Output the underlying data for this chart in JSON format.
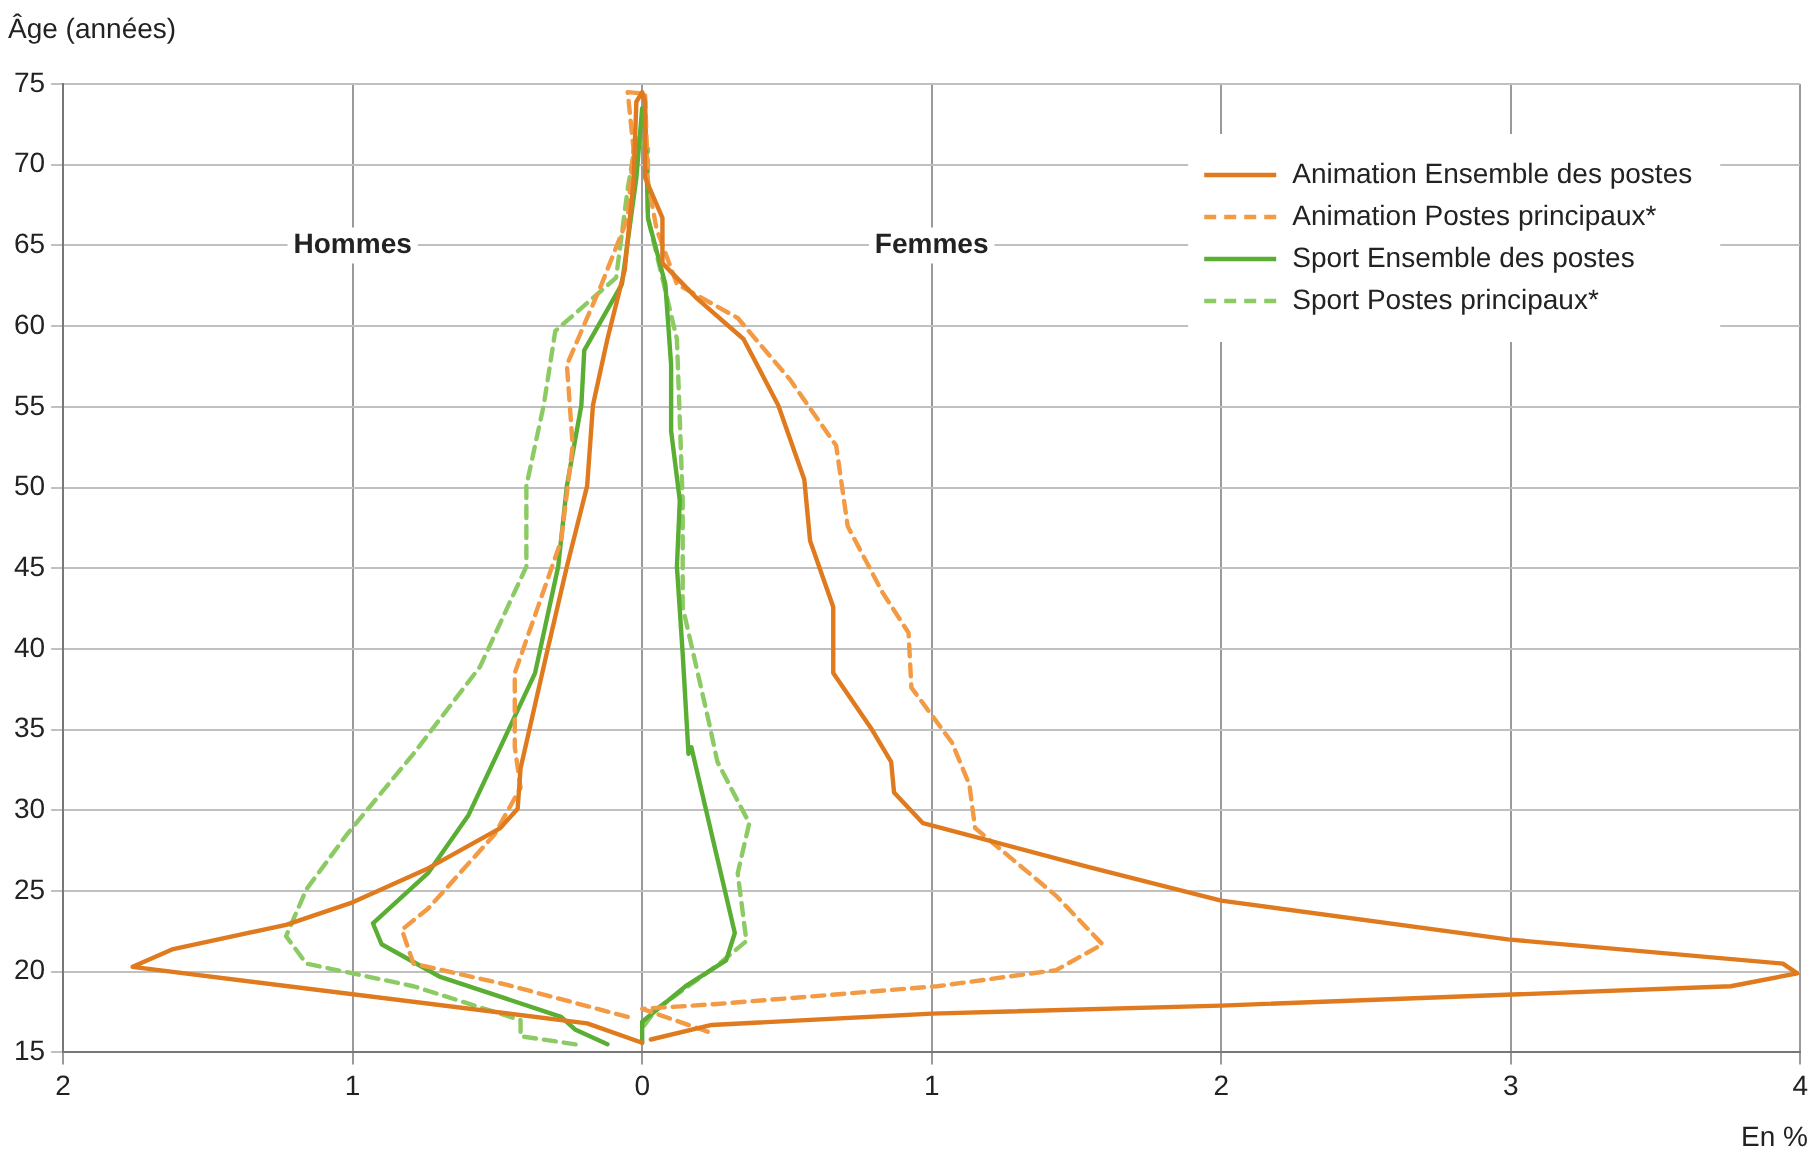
{
  "chart_data": {
    "type": "line",
    "ylabel": "Âge (années)",
    "xlabel": "En %",
    "xlim": [
      -2,
      4
    ],
    "xticks": [
      {
        "value": -2,
        "label": "2"
      },
      {
        "value": -1,
        "label": "1"
      },
      0,
      1,
      2,
      3,
      4
    ],
    "ylim": [
      15,
      75
    ],
    "yticks": [
      15,
      20,
      25,
      30,
      35,
      40,
      45,
      50,
      55,
      60,
      65,
      70,
      75
    ],
    "grid": true,
    "legend": "top right",
    "marker": "none",
    "annotations": [
      "Hommes",
      "Femmes"
    ],
    "series": [
      {
        "name": "Animation Ensemble des postes",
        "color": "#e07a1e",
        "line_style": "solid",
        "x": [
          0,
          -0.19,
          -1.76,
          -1.62,
          -1.23,
          -1.0,
          -0.74,
          -0.49,
          -0.43,
          -0.42,
          -0.33,
          -0.26,
          -0.19,
          -0.17,
          -0.12,
          -0.06,
          -0.03,
          -0.02,
          0,
          0.01,
          0.01,
          0.07,
          0.07,
          0.19,
          0.35,
          0.47,
          0.56,
          0.58,
          0.66,
          0.66,
          0.79,
          0.86,
          0.87,
          0.97,
          1.54,
          2.0,
          2.99,
          3.94,
          3.99,
          3.76,
          2.0,
          1.0,
          0.24,
          0.03
        ],
        "values": [
          15.6,
          16.8,
          20.3,
          21.4,
          22.9,
          24.3,
          26.4,
          28.9,
          30.1,
          32.6,
          39.7,
          45.1,
          50.1,
          55.1,
          59.2,
          63.5,
          68.9,
          73.9,
          74.5,
          73.9,
          69.2,
          66.7,
          63.9,
          61.7,
          59.2,
          55.1,
          50.5,
          46.7,
          42.6,
          38.5,
          35.1,
          33.0,
          31.1,
          29.2,
          26.5,
          24.4,
          22.0,
          20.5,
          19.9,
          19.1,
          17.9,
          17.4,
          16.7,
          15.8
        ]
      },
      {
        "name": "Animation Postes principaux*",
        "color": "#f39a45",
        "line_style": "dashed",
        "x": [
          -0.05,
          -0.47,
          -0.79,
          -0.83,
          -0.74,
          -0.51,
          -0.42,
          -0.44,
          -0.44,
          -0.28,
          -0.24,
          -0.26,
          -0.14,
          -0.05,
          -0.03,
          -0.05,
          0.01,
          0.02,
          0.05,
          0.12,
          0.33,
          0.51,
          0.67,
          0.71,
          0.83,
          0.92,
          0.93,
          1.07,
          1.13,
          1.15,
          1.43,
          1.59,
          1.43,
          1.02,
          0.26,
          0,
          0.24
        ],
        "values": [
          17.2,
          19.2,
          20.5,
          22.6,
          23.9,
          28.5,
          31.4,
          33.9,
          38.5,
          46.7,
          52.6,
          57.6,
          62.6,
          66.7,
          71.0,
          74.5,
          74.4,
          68.9,
          66.0,
          62.6,
          60.5,
          56.7,
          52.6,
          47.6,
          43.5,
          41.0,
          37.6,
          34.2,
          31.6,
          28.9,
          24.7,
          21.7,
          20.1,
          19.1,
          18.0,
          17.7,
          16.2
        ]
      },
      {
        "name": "Sport Ensemble des postes",
        "color": "#5aae34",
        "line_style": "solid",
        "x": [
          -0.12,
          -0.23,
          -0.28,
          -0.7,
          -0.9,
          -0.93,
          -0.74,
          -0.6,
          -0.49,
          -0.37,
          -0.29,
          -0.26,
          -0.21,
          -0.2,
          -0.07,
          -0.02,
          0,
          0.01,
          0.02,
          0.08,
          0.1,
          0.1,
          0.13,
          0.12,
          0.14,
          0.16,
          0.17,
          0.26,
          0.32,
          0.29,
          0.15,
          0,
          0
        ],
        "values": [
          15.5,
          16.4,
          17.2,
          19.7,
          21.7,
          23.0,
          26.1,
          29.7,
          33.9,
          38.5,
          45.1,
          50.1,
          55.1,
          58.5,
          62.6,
          69.2,
          73.5,
          73.5,
          66.7,
          62.6,
          57.6,
          53.5,
          49.2,
          45.1,
          39.7,
          33.5,
          33.9,
          27.0,
          22.4,
          20.7,
          19.1,
          16.9,
          15.6
        ]
      },
      {
        "name": "Sport Postes principaux*",
        "color": "#8ccb63",
        "line_style": "dashed",
        "x": [
          -0.23,
          -0.42,
          -0.42,
          -0.79,
          -1.16,
          -1.23,
          -1.16,
          -1.02,
          -0.79,
          -0.56,
          -0.4,
          -0.4,
          -0.34,
          -0.3,
          -0.09,
          -0.05,
          -0.02,
          0.02,
          0.02,
          0.12,
          0.14,
          0.14,
          0.23,
          0.26,
          0.37,
          0.33,
          0.36,
          0.26,
          0.05,
          0
        ],
        "values": [
          15.5,
          16.0,
          17.0,
          19.1,
          20.5,
          22.2,
          25.1,
          28.5,
          33.5,
          38.9,
          45.1,
          50.1,
          55.1,
          59.7,
          63.0,
          68.5,
          71.7,
          71.0,
          66.7,
          59.2,
          49.2,
          42.6,
          35.5,
          33.0,
          29.2,
          26.1,
          21.9,
          20.4,
          17.7,
          16.5
        ]
      }
    ]
  }
}
